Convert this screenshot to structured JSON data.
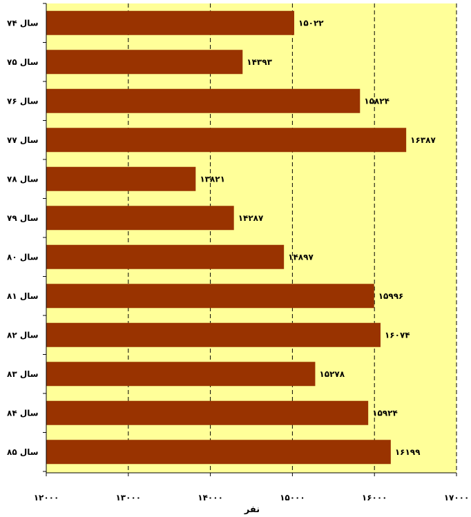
{
  "chart_data": {
    "type": "bar",
    "orientation": "horizontal",
    "categories": [
      "سال ۷۴",
      "سال ۷۵",
      "سال ۷۶",
      "سال ۷۷",
      "سال ۷۸",
      "سال ۷۹",
      "سال ۸۰",
      "سال ۸۱",
      "سال ۸۲",
      "سال ۸۳",
      "سال ۸۴",
      "سال ۸۵"
    ],
    "values": [
      15022,
      14393,
      15824,
      16387,
      13821,
      14287,
      14897,
      15996,
      16074,
      15278,
      15924,
      16199
    ],
    "value_labels": [
      "۱۵۰۲۲",
      "۱۴۳۹۳",
      "۱۵۸۲۴",
      "۱۶۳۸۷",
      "۱۳۸۲۱",
      "۱۴۲۸۷",
      "۱۴۸۹۷",
      "۱۵۹۹۶",
      "۱۶۰۷۴",
      "۱۵۲۷۸",
      "۱۵۹۲۴",
      "۱۶۱۹۹"
    ],
    "xlim": [
      12000,
      17000
    ],
    "x_ticks": [
      12000,
      13000,
      14000,
      15000,
      16000,
      17000
    ],
    "x_tick_labels": [
      "۱۲۰۰۰",
      "۱۳۰۰۰",
      "۱۴۰۰۰",
      "۱۵۰۰۰",
      "۱۶۰۰۰",
      "۱۷۰۰۰"
    ],
    "xlabel": "نفر",
    "ylabel": "",
    "title": "",
    "grid": "vertical dashed",
    "colors": {
      "bar": "#993300",
      "plot_background": "#ffff99",
      "gridline": "#000000"
    }
  }
}
